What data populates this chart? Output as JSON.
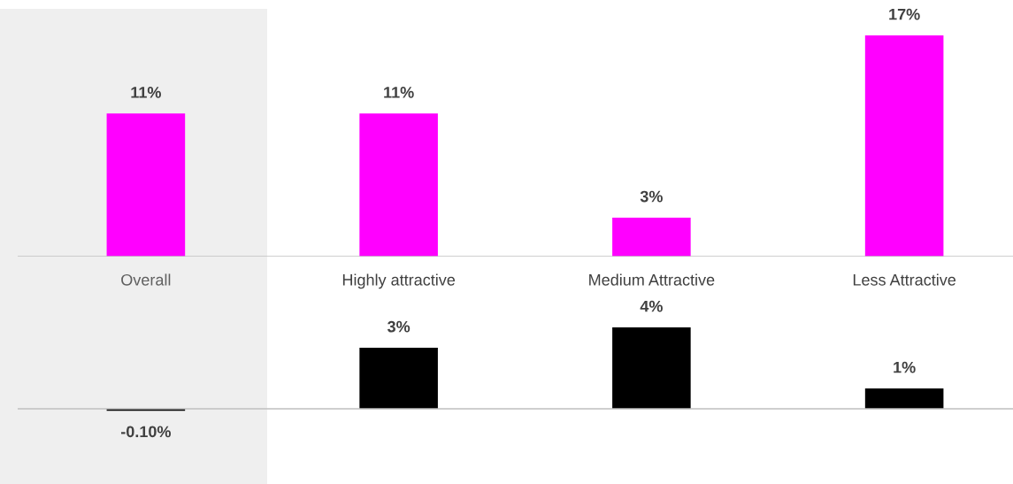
{
  "chart_data": [
    {
      "type": "bar",
      "categories": [
        "Overall",
        "Highly attractive",
        "Medium Attractive",
        "Less Attractive"
      ],
      "series": [
        {
          "color": "#ff00ff",
          "values": [
            11,
            11,
            3,
            17
          ],
          "value_labels": [
            "11%",
            "11%",
            "3%",
            "17%"
          ]
        }
      ],
      "bands": [
        {
          "axis": "x",
          "from": "Overall",
          "to": "Overall",
          "color": "#efefef"
        }
      ],
      "tick_labels": "x",
      "grid": false,
      "legend": false
    },
    {
      "type": "bar",
      "categories": [
        null,
        null,
        null,
        null
      ],
      "series": [
        {
          "color": "#000000",
          "values": [
            -0.1,
            3,
            4,
            1
          ],
          "value_labels": [
            "-0.10%",
            "3%",
            "4%",
            "1%"
          ]
        }
      ],
      "tick_labels": false,
      "grid": false,
      "legend": false
    }
  ]
}
